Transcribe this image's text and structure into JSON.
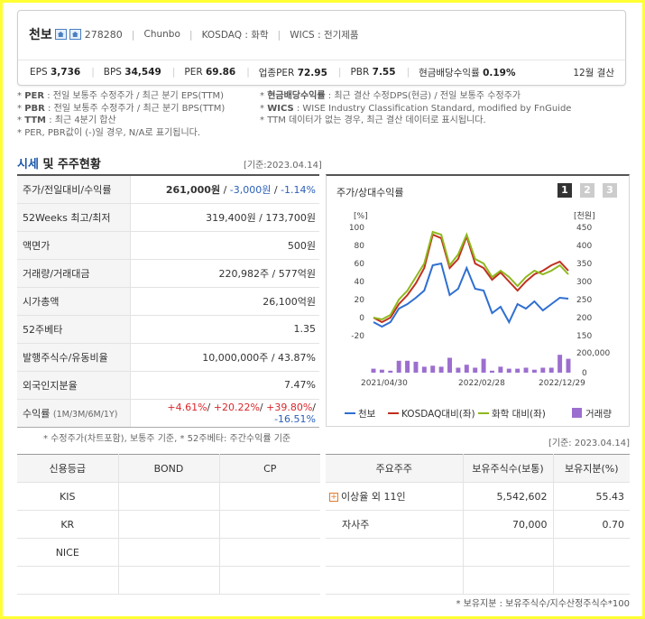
{
  "summary": {
    "name": "천보",
    "code": "278280",
    "eng_name": "Chunbo",
    "market": "KOSDAQ : 화학",
    "wics": "WICS : 전기제품",
    "eps_label": "EPS",
    "eps": "3,736",
    "bps_label": "BPS",
    "bps": "34,549",
    "per_label": "PER",
    "per": "69.86",
    "sector_per_label": "업종PER",
    "sector_per": "72.95",
    "pbr_label": "PBR",
    "pbr": "7.55",
    "div_label": "현금배당수익률",
    "div": "0.19%",
    "fiscal": "12월 결산"
  },
  "notes": {
    "left": [
      {
        "key": "PER",
        "text": " : 전일 보통주 수정주가 / 최근 분기 EPS(TTM)"
      },
      {
        "key": "PBR",
        "text": " : 전일 보통주 수정주가 / 최근 분기 BPS(TTM)"
      },
      {
        "key": "TTM",
        "text": " : 최근 4분기 합산"
      },
      {
        "key": "",
        "text": "PER, PBR값이 (-)일 경우, N/A로 표기됩니다."
      }
    ],
    "right": [
      {
        "key": "현금배당수익률",
        "text": " : 최근 결산 수정DPS(현금) / 전일 보통주 수정주가"
      },
      {
        "key": "WICS",
        "text": " : WISE Industry Classification Standard, modified by FnGuide"
      },
      {
        "key": "",
        "text": "TTM 데이터가 없는 경우, 최근 결산 데이터로 표시됩니다."
      }
    ]
  },
  "section": {
    "title_blue": "시세",
    "title_rest": " 및 주주현황",
    "base_date": "[기준:2023.04.14]"
  },
  "price_table": [
    {
      "label": "주가/전일대비/수익률"
    },
    {
      "label": "52Weeks 최고/최저",
      "value": "319,400원 / 173,700원"
    },
    {
      "label": "액면가",
      "value": "500원"
    },
    {
      "label": "거래량/거래대금",
      "value": "220,982주 / 577억원"
    },
    {
      "label": "시가총액",
      "value": "26,100억원"
    },
    {
      "label": "52주베타",
      "value": "1.35"
    },
    {
      "label": "발행주식수/유동비율",
      "value": "10,000,000주 / 43.87%"
    },
    {
      "label": "외국인지분율",
      "value": "7.47%"
    }
  ],
  "price_row": {
    "price": "261,000원",
    "sep": " / ",
    "change": "-3,000원",
    "rate": "-1.14%"
  },
  "returns_row": {
    "label": "수익률",
    "sub": "(1M/3M/6M/1Y)",
    "r1": "+4.61%",
    "r2": "+20.22%",
    "r3": "+39.80%",
    "r4": "-16.51%"
  },
  "note2": "* 수정주가(차트포함), 보통주 기준, * 52주베타: 주간수익률 기준",
  "chart_header": {
    "title": "주가/상대수익률",
    "pages": [
      "1",
      "2",
      "3"
    ]
  },
  "chart_data": {
    "type": "line",
    "left_unit": "[%]",
    "right_unit": "[천원]",
    "left_ticks": [
      "100",
      "80",
      "60",
      "40",
      "20",
      "0",
      "-20"
    ],
    "right_ticks": [
      "450",
      "400",
      "350",
      "300",
      "250",
      "200",
      "150"
    ],
    "volume_ticks": [
      "200,000",
      "0"
    ],
    "x_ticks": [
      "2021/04/30",
      "2022/02/28",
      "2022/12/29"
    ],
    "ylim_left": [
      -20,
      100
    ],
    "series": [
      {
        "name": "천보",
        "color": "#2f6fd0",
        "values": [
          -5,
          -10,
          -5,
          10,
          15,
          22,
          30,
          58,
          60,
          25,
          32,
          55,
          32,
          30,
          5,
          12,
          -5,
          15,
          10,
          18,
          8,
          15,
          22,
          21
        ]
      },
      {
        "name": "KOSDAQ대비(좌)",
        "color": "#c0301f",
        "values": [
          0,
          -5,
          0,
          15,
          25,
          38,
          55,
          92,
          88,
          55,
          65,
          90,
          60,
          55,
          42,
          50,
          40,
          30,
          40,
          48,
          52,
          58,
          62,
          52
        ]
      },
      {
        "name": "화학 대비(좌)",
        "color": "#8fb81e",
        "values": [
          0,
          -2,
          3,
          20,
          30,
          45,
          60,
          95,
          92,
          58,
          70,
          92,
          65,
          60,
          45,
          52,
          45,
          35,
          45,
          52,
          48,
          52,
          58,
          48
        ]
      }
    ],
    "volume": {
      "name": "거래량",
      "color": "#9c6fcf",
      "values": [
        20,
        15,
        10,
        60,
        60,
        55,
        30,
        35,
        30,
        75,
        25,
        40,
        25,
        70,
        10,
        30,
        20,
        20,
        25,
        15,
        25,
        25,
        90,
        70
      ]
    }
  },
  "credit": {
    "headers": [
      "신용등급",
      "BOND",
      "CP"
    ],
    "rows": [
      [
        "KIS",
        "",
        ""
      ],
      [
        "KR",
        "",
        ""
      ],
      [
        "NICE",
        "",
        ""
      ],
      [
        "",
        "",
        ""
      ]
    ]
  },
  "holders": {
    "base_date": "[기준: 2023.04.14]",
    "headers": [
      "주요주주",
      "보유주식수(보통)",
      "보유지분(%)"
    ],
    "rows": [
      {
        "name": "이상율 외 11인",
        "shares": "5,542,602",
        "pct": "55.43"
      },
      {
        "name": "자사주",
        "shares": "70,000",
        "pct": "0.70"
      },
      {
        "name": "",
        "shares": "",
        "pct": ""
      },
      {
        "name": "",
        "shares": "",
        "pct": ""
      }
    ],
    "note": "* 보유지분 : 보유주식수/지수산정주식수*100"
  }
}
